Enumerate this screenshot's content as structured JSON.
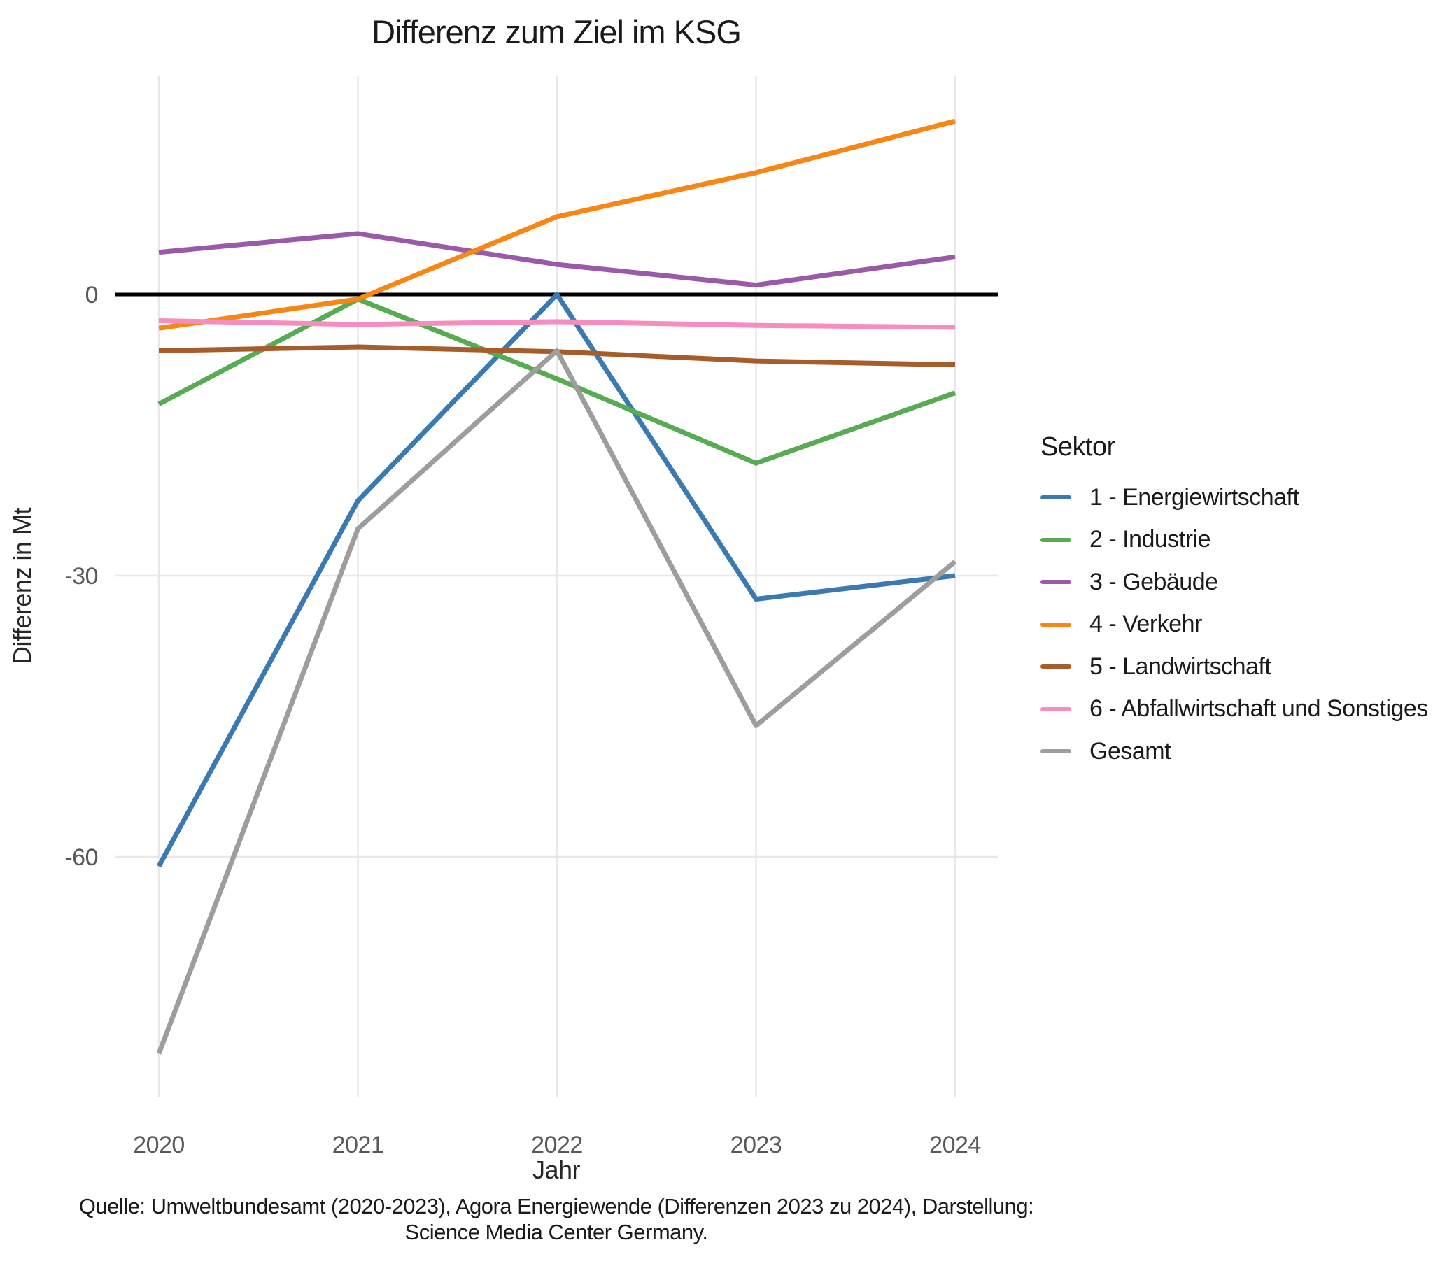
{
  "title": "Differenz zum Ziel im KSG",
  "x_axis": {
    "title": "Jahr"
  },
  "y_axis": {
    "title": "Differenz in Mt"
  },
  "legend": {
    "title": "Sektor"
  },
  "caption": {
    "line1": "Quelle: Umweltbundesamt (2020-2023), Agora Energiewende (Differenzen 2023 zu 2024), Darstellung:",
    "line2": "Science Media Center Germany."
  },
  "colors": {
    "zero_line": "#000000",
    "gridline": "#e8e8e8",
    "tick_text": "#595959",
    "axis_title_text": "#262626",
    "title_text": "#1a1a1a"
  },
  "chart_data": {
    "type": "line",
    "title": "Differenz zum Ziel im KSG",
    "xlabel": "Jahr",
    "ylabel": "Differenz in Mt",
    "x": [
      2020,
      2021,
      2022,
      2023,
      2024
    ],
    "yticks": [
      0,
      -30,
      -60
    ],
    "ylim": [
      -85,
      24
    ],
    "zero_line": 0,
    "grid": true,
    "legend_title": "Sektor",
    "legend_position": "right",
    "series": [
      {
        "name": "1 - Energiewirtschaft",
        "color": "#3A79B1",
        "values": [
          -61,
          -22,
          0,
          -32.5,
          -30
        ]
      },
      {
        "name": "2 - Industrie",
        "color": "#57AB53",
        "values": [
          -11.7,
          -0.5,
          -9,
          -18,
          -10.5
        ]
      },
      {
        "name": "3 - Gebäude",
        "color": "#9B59A9",
        "values": [
          4.5,
          6.5,
          3.2,
          1,
          4
        ]
      },
      {
        "name": "4 - Verkehr",
        "color": "#F78614",
        "values": [
          -3.6,
          -0.5,
          8.3,
          13,
          18.5
        ]
      },
      {
        "name": "5 - Landwirtschaft",
        "color": "#A65D29",
        "values": [
          -6,
          -5.6,
          -6.1,
          -7.1,
          -7.5
        ]
      },
      {
        "name": "6 - Abfallwirtschaft und Sonstiges",
        "color": "#F78CBF",
        "values": [
          -2.8,
          -3.2,
          -2.9,
          -3.3,
          -3.5
        ]
      },
      {
        "name": "Gesamt",
        "color": "#9D9D9D",
        "values": [
          -81,
          -25,
          -6,
          -46,
          -28.5
        ]
      }
    ]
  }
}
